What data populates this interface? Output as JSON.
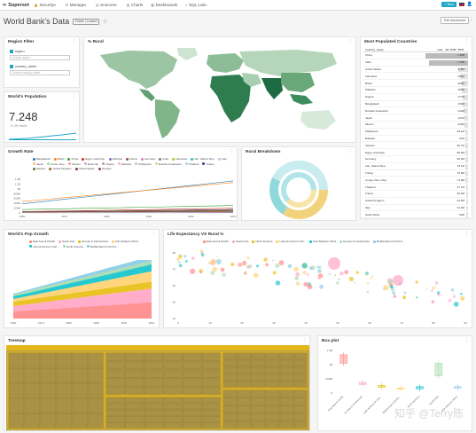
{
  "nav": {
    "brand": "Superset",
    "items": [
      "Security",
      "Manage",
      "Sources",
      "Charts",
      "Dashboards",
      "SQL Lab"
    ],
    "new_label": "+ New"
  },
  "dashboard": {
    "title": "World Bank's Data",
    "badge": "Public | Locked",
    "edit_label": "Edit dashboard"
  },
  "panels": {
    "region_filter": {
      "title": "Region Filter",
      "filters": [
        {
          "label": "region",
          "placeholder": "Search region..."
        },
        {
          "label": "country_name",
          "placeholder": "Search country_name..."
        }
      ]
    },
    "population": {
      "title": "World's Population",
      "value": "7.248",
      "sub": "+1.2% WoW"
    },
    "rural_map": {
      "title": "% Rural"
    },
    "top_countries": {
      "title": "Most Populated Countries",
      "col1": "country_name",
      "col2": "sum__SP_POP_TOTL",
      "rows": [
        {
          "name": "China",
          "value": "1.36B"
        },
        {
          "name": "India",
          "value": "1.25B"
        },
        {
          "name": "United States",
          "value": "318M"
        },
        {
          "name": "Indonesia",
          "value": "253M"
        },
        {
          "name": "Brazil",
          "value": "206M"
        },
        {
          "name": "Pakistan",
          "value": "185M"
        },
        {
          "name": "Nigeria",
          "value": "177M"
        },
        {
          "name": "Bangladesh",
          "value": "159M"
        },
        {
          "name": "Russian Federation",
          "value": "144M"
        },
        {
          "name": "Japan",
          "value": "127M"
        },
        {
          "name": "Mexico",
          "value": "125M"
        },
        {
          "name": "Philippines",
          "value": "99.1M"
        },
        {
          "name": "Ethiopia",
          "value": "97M"
        },
        {
          "name": "Vietnam",
          "value": "90.7M"
        },
        {
          "name": "Egypt, Arab Rep.",
          "value": "89.6M"
        },
        {
          "name": "Germany",
          "value": "80.9M"
        },
        {
          "name": "Iran, Islamic Rep.",
          "value": "78.1M"
        },
        {
          "name": "Turkey",
          "value": "75.9M"
        },
        {
          "name": "Congo, Dem. Rep.",
          "value": "74.9M"
        },
        {
          "name": "Thailand",
          "value": "67.7M"
        },
        {
          "name": "France",
          "value": "66.2M"
        },
        {
          "name": "United Kingdom",
          "value": "64.5M"
        },
        {
          "name": "Italy",
          "value": "61.3M"
        },
        {
          "name": "South Africa",
          "value": "54M"
        }
      ]
    },
    "growth_rate": {
      "title": "Growth Rate",
      "legend": [
        "Bangladesh",
        "Brazil",
        "China",
        "Egypt, Arab Rep.",
        "Ethiopia",
        "France",
        "Germany",
        "India",
        "Indonesia",
        "Iran, Islamic Rep.",
        "Italy",
        "Japan",
        "Korea, Rep.",
        "Mexico",
        "Myanmar",
        "Nigeria",
        "Pakistan",
        "Philippines",
        "Russian Federation",
        "Thailand",
        "Turkey",
        "Ukraine",
        "United Kingdom",
        "United States",
        "Vietnam"
      ],
      "yticks": [
        "1.4B",
        "1.2B",
        "1B",
        "800M",
        "600M",
        "400M",
        "200M",
        "0"
      ],
      "xticks": [
        "1960",
        "1970",
        "1980",
        "1990",
        "2000",
        "2010"
      ]
    },
    "rural_breakdown": {
      "title": "Rural Breakdown"
    },
    "pop_growth": {
      "title": "World's Pop Growth",
      "legend": [
        "East Asia & Pacific",
        "South Asia",
        "Europe & Central Asia",
        "Sub-Saharan Africa",
        "Latin America & Cari...",
        "North America",
        "Middle East & North A..."
      ],
      "xticks": [
        "1960",
        "1970",
        "1980",
        "1990",
        "2000",
        "2010"
      ]
    },
    "life_expectancy": {
      "title": "Life Expectancy VS Rural %",
      "legend": [
        "East Asia & Pacific",
        "South Asia",
        "North America",
        "Latin America & Cari...",
        "Sub-Saharan Africa",
        "Europe & Central Asia",
        "Middle East & North A..."
      ],
      "yticks": [
        "80",
        "70",
        "60",
        "50",
        "40"
      ],
      "xticks": [
        "0",
        "10",
        "20",
        "30",
        "40",
        "50",
        "60",
        "70",
        "80",
        "90"
      ]
    },
    "treemap": {
      "title": "Treemap"
    },
    "box_plot": {
      "title": "Box plot",
      "yticks": [
        "1.5B",
        "1B",
        "500M",
        "0"
      ],
      "xticks": [
        "East Asia & Pacific",
        "Europe & Central Asia",
        "Latin America & Cari...",
        "Middle East & North...",
        "North America",
        "South Asia",
        "Sub-Saharan Africa"
      ]
    }
  },
  "watermark": "知乎 @Terry陈",
  "colors": {
    "accent": "#20a7c9",
    "regions": [
      "#ff7f7f",
      "#ff9fc0",
      "#e6b800",
      "#ffcf66",
      "#00c0c7",
      "#9fd9a6",
      "#7ec8e3"
    ]
  }
}
